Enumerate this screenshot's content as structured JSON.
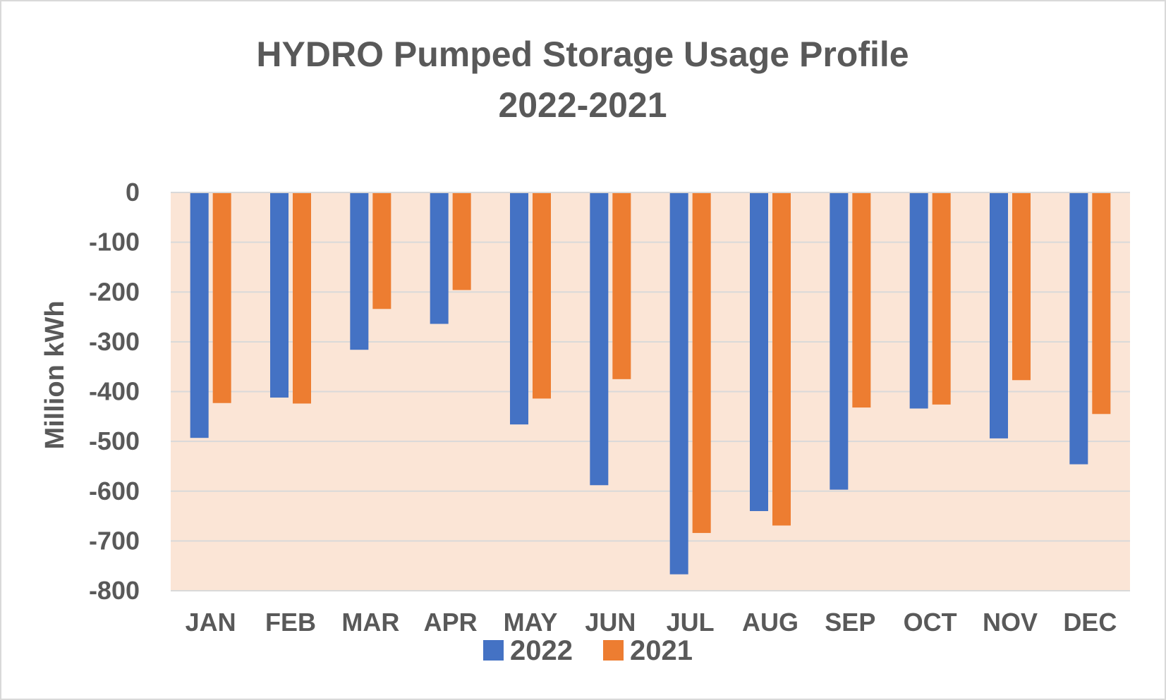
{
  "chart_data": {
    "type": "bar",
    "title": [
      "HYDRO Pumped Storage Usage Profile",
      "2022-2021"
    ],
    "xlabel": "",
    "ylabel": "Million kWh",
    "ylim": [
      -800,
      0
    ],
    "yticks": [
      0,
      -100,
      -200,
      -300,
      -400,
      -500,
      -600,
      -700,
      -800
    ],
    "ytick_labels": [
      "0",
      "-100",
      "-200",
      "-300",
      "-400",
      "-500",
      "-600",
      "-700",
      "-800"
    ],
    "grid": true,
    "legend_position": "bottom",
    "categories": [
      "JAN",
      "FEB",
      "MAR",
      "APR",
      "MAY",
      "JUN",
      "JUL",
      "AUG",
      "SEP",
      "OCT",
      "NOV",
      "DEC"
    ],
    "series": [
      {
        "name": "2022",
        "color": "#4472C4",
        "values": [
          -493,
          -412,
          -316,
          -264,
          -466,
          -588,
          -767,
          -640,
          -597,
          -434,
          -494,
          -546
        ]
      },
      {
        "name": "2021",
        "color": "#ED7D31",
        "values": [
          -423,
          -424,
          -234,
          -196,
          -414,
          -375,
          -684,
          -669,
          -432,
          -426,
          -377,
          -445
        ]
      }
    ],
    "plot_background": "#FBE5D6",
    "gridline_color": "#D9D9D9",
    "text_color": "#595959"
  }
}
